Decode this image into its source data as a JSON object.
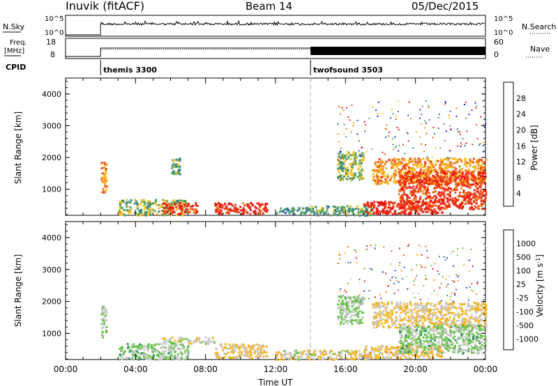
{
  "header": {
    "station": "Inuvik (fitACF)",
    "beam": "Beam 14",
    "date": "05/Dec/2015"
  },
  "panels": {
    "nsky": {
      "left_label": "N.Sky",
      "left_ticks": [
        "10^5",
        "10^0"
      ],
      "right_label": "N.Search",
      "right_ticks": [
        "10^5",
        "10^0"
      ]
    },
    "freq": {
      "left_label_1": "Freq.",
      "left_label_2": "[MHz]",
      "left_ticks": [
        "18",
        "8"
      ],
      "right_label": "Nave",
      "right_ticks": [
        "60",
        "0"
      ]
    },
    "cpid": {
      "label": "CPID",
      "segments": [
        {
          "name": "themis 3300",
          "start_hour": 2.0
        },
        {
          "name": "twofsound 3503",
          "start_hour": 14.0
        }
      ]
    }
  },
  "colors": {
    "power_scale": [
      "#0b22f2",
      "#2f5fb1",
      "#3b8a7a",
      "#58a860",
      "#f6c324",
      "#f38a1b",
      "#f24a1a",
      "#e81b12"
    ],
    "velocity_scale": [
      "#1c3fc4",
      "#2f58b0",
      "#3a8a6e",
      "#6ac44a",
      "#c8c8c8",
      "#f7b51d",
      "#f58a1c",
      "#f1581e",
      "#e81c14"
    ]
  },
  "chart_data": [
    {
      "type": "heatmap",
      "title": "",
      "xlabel": "",
      "ylabel": "Slant Range [km]",
      "xlim": [
        0,
        24
      ],
      "ylim": [
        180,
        4500
      ],
      "y_ticks": [
        "1000",
        "2000",
        "3000",
        "4000"
      ],
      "colorbar": {
        "label": "Power [dB]",
        "ticks": [
          "28",
          "24",
          "20",
          "16",
          "12",
          "8",
          "4"
        ],
        "range": [
          0,
          30
        ]
      },
      "echo_regions": [
        {
          "x": [
            2.0,
            2.3
          ],
          "y": [
            900,
            1900
          ],
          "value": 20
        },
        {
          "x": [
            3.0,
            7.0
          ],
          "y": [
            200,
            700
          ],
          "value": 14
        },
        {
          "x": [
            5.5,
            7.5
          ],
          "y": [
            250,
            600
          ],
          "value": 26
        },
        {
          "x": [
            8.5,
            11.5
          ],
          "y": [
            250,
            600
          ],
          "value": 27
        },
        {
          "x": [
            6.0,
            6.5
          ],
          "y": [
            1500,
            2000
          ],
          "value": 12
        },
        {
          "x": [
            12.0,
            14.0
          ],
          "y": [
            250,
            450
          ],
          "value": 10
        },
        {
          "x": [
            14.0,
            17.5
          ],
          "y": [
            200,
            500
          ],
          "value": 12
        },
        {
          "x": [
            17.0,
            21.5
          ],
          "y": [
            250,
            650
          ],
          "value": 28
        },
        {
          "x": [
            15.5,
            17.0
          ],
          "y": [
            1300,
            2200
          ],
          "value": 14
        },
        {
          "x": [
            17.5,
            24.0
          ],
          "y": [
            1200,
            2000
          ],
          "value": 20
        },
        {
          "x": [
            19.0,
            24.0
          ],
          "y": [
            400,
            1600
          ],
          "value": 26
        }
      ]
    },
    {
      "type": "heatmap",
      "title": "",
      "xlabel": "Time UT",
      "ylabel": "Slant Range [km]",
      "xlim": [
        0,
        24
      ],
      "ylim": [
        180,
        4500
      ],
      "x_ticks": [
        "00:00",
        "04:00",
        "08:00",
        "12:00",
        "16:00",
        "20:00",
        "00:00"
      ],
      "y_ticks": [
        "1000",
        "2000",
        "3000",
        "4000"
      ],
      "colorbar": {
        "label": "Velocity [m s^-1]",
        "ticks": [
          "1000",
          "500",
          "100",
          "25",
          "-25",
          "-100",
          "-500",
          "-1000"
        ],
        "range": [
          -1200,
          1200
        ]
      },
      "echo_regions": [
        {
          "x": [
            2.0,
            2.3
          ],
          "y": [
            900,
            1900
          ],
          "value": 150
        },
        {
          "x": [
            3.0,
            7.0
          ],
          "y": [
            200,
            700
          ],
          "value": 200
        },
        {
          "x": [
            5.5,
            8.5
          ],
          "y": [
            700,
            900
          ],
          "value": 0
        },
        {
          "x": [
            8.5,
            11.5
          ],
          "y": [
            250,
            700
          ],
          "value": -150
        },
        {
          "x": [
            12.0,
            17.5
          ],
          "y": [
            200,
            500
          ],
          "value": -60
        },
        {
          "x": [
            17.0,
            21.5
          ],
          "y": [
            250,
            650
          ],
          "value": -200
        },
        {
          "x": [
            15.5,
            17.0
          ],
          "y": [
            1300,
            2200
          ],
          "value": 150
        },
        {
          "x": [
            17.5,
            24.0
          ],
          "y": [
            1200,
            2000
          ],
          "value": -150
        },
        {
          "x": [
            19.0,
            24.0
          ],
          "y": [
            400,
            1300
          ],
          "value": 200
        }
      ]
    }
  ]
}
